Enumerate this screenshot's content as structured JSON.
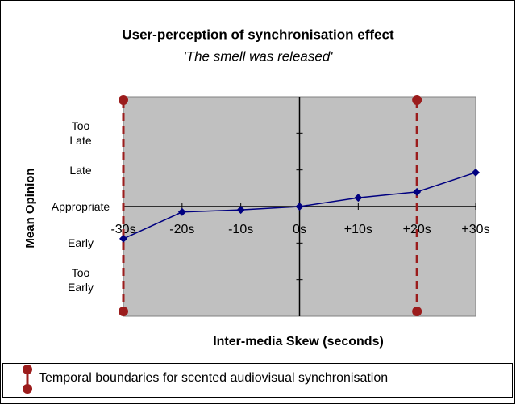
{
  "chart_data": {
    "type": "line",
    "title": "User-perception of synchronisation effect",
    "subtitle": "'The smell was released'",
    "x_label": "Inter-media Skew (seconds)",
    "y_label": "Mean Opinion",
    "x": [
      -30,
      -20,
      -10,
      0,
      10,
      20,
      30
    ],
    "series": [
      {
        "color": "#000080",
        "values": [
          -0.88,
          -0.15,
          -0.09,
          0,
          0.24,
          0.4,
          0.93
        ]
      }
    ],
    "boundaries": {
      "name": "Temporal boundaries for scented audiovisual synchronisation",
      "color": "#9b1c1c",
      "x": [
        -30,
        20
      ]
    },
    "xlim": [
      -30,
      30
    ],
    "xticks": [
      {
        "value": -30,
        "label": "-30s"
      },
      {
        "value": -20,
        "label": "-20s"
      },
      {
        "value": -10,
        "label": "-10s"
      },
      {
        "value": 0,
        "label": "0s"
      },
      {
        "value": 10,
        "label": "+10s"
      },
      {
        "value": 20,
        "label": "+20s"
      },
      {
        "value": 30,
        "label": "+30s"
      }
    ],
    "ylim": [
      -3,
      3
    ],
    "yticks": [
      {
        "value": -2,
        "label": "Too Early"
      },
      {
        "value": -1,
        "label": "Early"
      },
      {
        "value": 0,
        "label": "Appropriate"
      },
      {
        "value": 1,
        "label": "Late"
      },
      {
        "value": 2,
        "label": "Too Late"
      }
    ],
    "grid": false
  }
}
